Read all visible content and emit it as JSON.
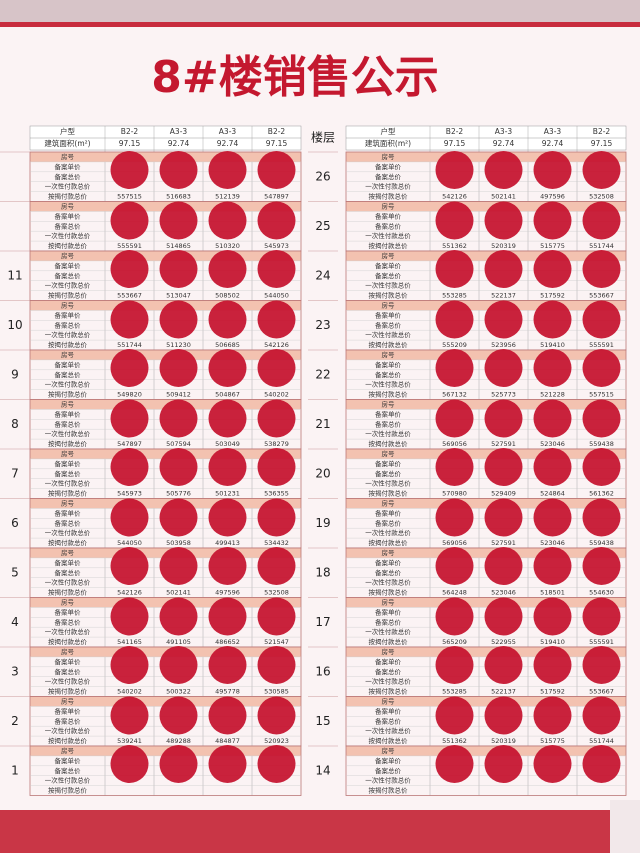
{
  "header": {
    "title": "8#楼销售公示"
  },
  "tables": [
    {
      "type_label": "户型",
      "area_label": "建筑面积(m²)",
      "types": [
        "B2-2",
        "A3-3",
        "A3-3",
        "B2-2"
      ],
      "areas": [
        97.15,
        92.74,
        92.74,
        97.15
      ],
      "row_labels": [
        "房号",
        "备案单价",
        "备案总价",
        "一次性付款总价",
        "按揭付款总价"
      ],
      "floors": [
        {
          "floor": null,
          "mortgage": [
            557515,
            516683,
            512139,
            547897
          ]
        },
        {
          "floor": null,
          "mortgage": [
            555591,
            514865,
            510320,
            545973
          ]
        },
        {
          "floor": "11",
          "mortgage": [
            553667,
            513047,
            508502,
            544050
          ]
        },
        {
          "floor": "10",
          "mortgage": [
            551744,
            511230,
            506685,
            542126
          ]
        },
        {
          "floor": "9",
          "mortgage": [
            549820,
            509412,
            504867,
            540202
          ]
        },
        {
          "floor": "8",
          "mortgage": [
            547897,
            507594,
            503049,
            538279
          ]
        },
        {
          "floor": "7",
          "mortgage": [
            545973,
            505776,
            501231,
            536355
          ]
        },
        {
          "floor": "6",
          "mortgage": [
            544050,
            503958,
            499413,
            534432
          ]
        },
        {
          "floor": "5",
          "mortgage": [
            542126,
            502141,
            497596,
            532508
          ]
        },
        {
          "floor": "4",
          "mortgage": [
            541165,
            491105,
            486652,
            521547
          ]
        },
        {
          "floor": "3",
          "mortgage": [
            540202,
            500322,
            495778,
            530585
          ]
        },
        {
          "floor": "2",
          "mortgage": [
            539241,
            489288,
            484877,
            520923
          ]
        },
        {
          "floor": "1",
          "mortgage": [
            null,
            null,
            null,
            null
          ]
        }
      ]
    },
    {
      "floor_header": "楼层",
      "type_label": "户型",
      "area_label": "建筑面积(m²)",
      "types": [
        "B2-2",
        "A3-3",
        "A3-3",
        "B2-2"
      ],
      "areas": [
        97.15,
        92.74,
        92.74,
        97.15
      ],
      "row_labels": [
        "房号",
        "备案单价",
        "备案总价",
        "一次性付款总价",
        "按揭付款总价"
      ],
      "floors": [
        {
          "floor": "26",
          "mortgage": [
            542126,
            502141,
            497596,
            532508
          ]
        },
        {
          "floor": "25",
          "mortgage": [
            551362,
            520319,
            515775,
            551744
          ]
        },
        {
          "floor": "24",
          "mortgage": [
            553285,
            522137,
            517592,
            553667
          ]
        },
        {
          "floor": "23",
          "mortgage": [
            555209,
            523956,
            519410,
            555591
          ]
        },
        {
          "floor": "22",
          "mortgage": [
            567132,
            525773,
            521228,
            557515
          ]
        },
        {
          "floor": "21",
          "mortgage": [
            569056,
            527591,
            523046,
            559438
          ]
        },
        {
          "floor": "20",
          "mortgage": [
            570980,
            529409,
            524864,
            561362
          ]
        },
        {
          "floor": "19",
          "mortgage": [
            569056,
            527591,
            523046,
            559438
          ]
        },
        {
          "floor": "18",
          "mortgage": [
            564248,
            523046,
            518501,
            554630
          ]
        },
        {
          "floor": "17",
          "mortgage": [
            565209,
            522955,
            519410,
            555591
          ]
        },
        {
          "floor": "16",
          "mortgage": [
            553285,
            522137,
            517592,
            553667
          ]
        },
        {
          "floor": "15",
          "mortgage": [
            551362,
            520319,
            515775,
            551744
          ]
        },
        {
          "floor": "14",
          "mortgage": [
            null,
            null,
            null,
            null
          ]
        }
      ]
    }
  ]
}
